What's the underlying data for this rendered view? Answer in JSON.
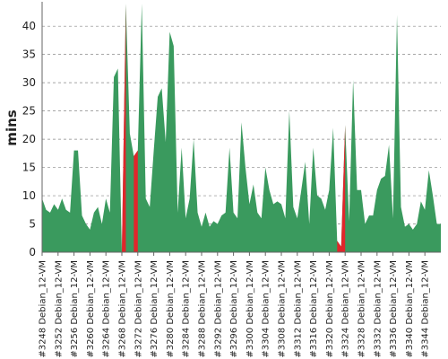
{
  "chart_data": {
    "type": "area",
    "title": "",
    "xlabel": "",
    "ylabel": "mins",
    "ylim": [
      0,
      44
    ],
    "yticks": [
      0,
      5,
      10,
      15,
      20,
      25,
      30,
      35,
      40
    ],
    "grid": true,
    "x_start": 3248,
    "x_end": 3348,
    "xtick_labels": [
      "#3248 Debian_12-VM",
      "#3252 Debian_12-VM",
      "#3256 Debian_12-VM",
      "#3260 Debian_12-VM",
      "#3264 Debian_12-VM",
      "#3268 Debian_12-VM",
      "#3272 Debian_12-VM",
      "#3276 Debian_12-VM",
      "#3280 Debian_12-VM",
      "#3284 Debian_12-VM",
      "#3288 Debian_12-VM",
      "#3292 Debian_12-VM",
      "#3296 Debian_12-VM",
      "#3300 Debian_12-VM",
      "#3304 Debian_12-VM",
      "#3308 Debian_12-VM",
      "#3312 Debian_12-VM",
      "#3316 Debian_12-VM",
      "#3320 Debian_12-VM",
      "#3324 Debian_12-VM",
      "#3328 Debian_12-VM",
      "#3332 Debian_12-VM",
      "#3336 Debian_12-VM",
      "#3340 Debian_12-VM",
      "#3344 Debian_12-VM"
    ],
    "values": [
      9.5,
      7.5,
      7,
      8.5,
      7.5,
      9.5,
      7.5,
      7,
      18,
      18,
      6.5,
      5,
      4,
      7,
      8,
      5,
      9.5,
      7,
      31,
      32.5,
      0,
      44,
      21,
      17,
      18,
      44,
      9.5,
      8,
      18,
      27.5,
      29,
      19.5,
      39,
      36.5,
      7,
      18.5,
      6,
      9.5,
      20,
      7,
      4.5,
      7,
      4.5,
      5.5,
      5,
      6.5,
      7,
      18.5,
      7,
      6,
      23,
      15,
      8.5,
      12,
      7,
      6,
      15,
      11,
      8.5,
      9,
      8.5,
      6,
      25,
      8,
      6,
      11,
      16,
      5,
      18.5,
      10,
      9.5,
      7.5,
      11,
      22,
      2,
      1,
      22.5,
      5.5,
      30.5,
      11,
      11,
      5,
      6.5,
      6.5,
      11,
      13,
      13.5,
      19,
      6,
      42,
      8,
      4.5,
      5,
      4,
      5,
      9,
      7.5,
      14.5,
      10,
      5,
      5
    ],
    "fail_ranges": [
      [
        3268,
        3269
      ],
      [
        3271,
        3272
      ],
      [
        3322,
        3324
      ]
    ],
    "colors": {
      "pass": "#3a9a5e",
      "fail": "#e0262b",
      "grid": "#888888"
    }
  }
}
